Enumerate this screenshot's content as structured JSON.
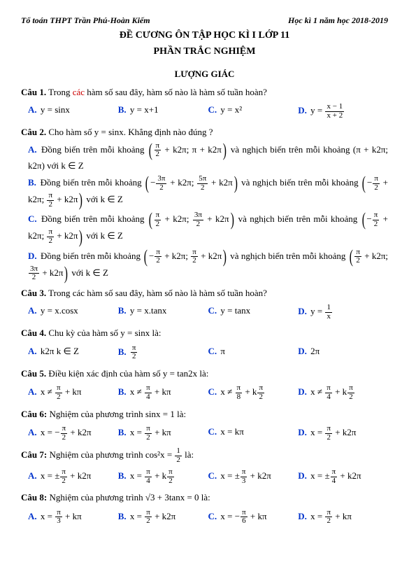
{
  "header": {
    "left": "Tổ toán THPT Trần Phú-Hoàn Kiếm",
    "right": "Học kì 1 năm học 2018-2019"
  },
  "title1": "ĐỀ CƯƠNG ÔN TẬP HỌC KÌ I LỚP 11",
  "title2": "PHẦN TRẮC NGHIỆM",
  "section1": "LƯỢNG GIÁC",
  "q1": {
    "label": "Câu 1.",
    "pre": "Trong ",
    "red": "các",
    "post": " hàm số sau đây, hàm số nào là hàm số tuần hoàn?",
    "a": "y = sinx",
    "b": "y = x+1",
    "c": "y = x²",
    "d_pre": "y = ",
    "d_num": "x − 1",
    "d_den": "x + 2"
  },
  "q2": {
    "label": "Câu 2.",
    "text": "Cho hàm số y = sinx. Khẳng định nào đúng ?",
    "a_pre": "Đồng biến trên mỗi khoảng ",
    "a_int1_a": "π",
    "a_int1_a_den": "2",
    "a_int1_post": " + k2π; π + k2π",
    "a_mid": " và nghịch biến trên mỗi khoảng ",
    "a_int2": "(π + k2π; k2π)  với k ∈ Z",
    "b_pre": "Đồng biến trên mỗi khoảng ",
    "b_i1_n1": "3π",
    "b_i1_d1": "2",
    "b_i1_n2": "5π",
    "b_i1_d2": "2",
    "b_mid": " và nghịch biến trên mỗi khoảng ",
    "b_i2_n1": "π",
    "b_i2_d1": "2",
    "b_i2_n2": "π",
    "b_i2_d2": "2",
    "b_end": " với k ∈ Z",
    "c_pre": "Đồng biến trên mỗi khoảng ",
    "c_i1_n1": "π",
    "c_i1_d1": "2",
    "c_i1_n2": "3π",
    "c_i1_d2": "2",
    "c_mid": " và nghịch biến trên mỗi khoảng ",
    "c_i2_n1": "π",
    "c_i2_d1": "2",
    "c_i2_n2": "π",
    "c_i2_d2": "2",
    "c_end": " với k ∈ Z",
    "d_pre": "Đồng biến trên mỗi khoảng ",
    "d_i1_n1": "π",
    "d_i1_d1": "2",
    "d_i1_n2": "π",
    "d_i1_d2": "2",
    "d_mid": " và nghịch biến trên mỗi khoảng ",
    "d_i2_n1": "π",
    "d_i2_d1": "2",
    "d_i2_n2": "3π",
    "d_i2_d2": "2",
    "d_end": " với k ∈ Z"
  },
  "q3": {
    "label": "Câu 3.",
    "text": "Trong các hàm số sau đây, hàm số nào là hàm số tuần hoàn?",
    "a": "y = x.cosx",
    "b": "y = x.tanx",
    "c": "y = tanx",
    "d_pre": "y = ",
    "d_num": "1",
    "d_den": "x"
  },
  "q4": {
    "label": "Câu 4.",
    "text": "Chu kỳ của hàm số  y = sinx là:",
    "a": "k2π  k ∈ Z",
    "b_num": "π",
    "b_den": "2",
    "c": "π",
    "d": "2π"
  },
  "q5": {
    "label": "Câu 5.",
    "text": "Điều kiện xác định của hàm số y = tan2x là:",
    "a_n": "π",
    "a_d": "2",
    "a_post": " + kπ",
    "b_n": "π",
    "b_d": "4",
    "b_post": " + kπ",
    "c_n1": "π",
    "c_d1": "8",
    "c_n2": "π",
    "c_d2": "2",
    "d_n1": "π",
    "d_d1": "4",
    "d_n2": "π",
    "d_d2": "2"
  },
  "q6": {
    "label": "Câu 6:",
    "text": "Nghiệm của phương trình   sinx = 1  là:",
    "a_n": "π",
    "a_d": "2",
    "a_post": " + k2π",
    "a_sign": "−",
    "b_n": "π",
    "b_d": "2",
    "b_post": " + kπ",
    "c": "x = kπ",
    "d_n": "π",
    "d_d": "2",
    "d_post": " + k2π"
  },
  "q7": {
    "label": "Câu 7:",
    "pre": "Nghiệm của phương trình   cos²x = ",
    "frac_n": "1",
    "frac_d": "2",
    "post": " là:",
    "a_n": "π",
    "a_d": "2",
    "a_post": " + k2π",
    "b_n": "π",
    "b_d": "4",
    "b_n2": "π",
    "b_d2": "2",
    "c_n": "π",
    "c_d": "3",
    "c_post": " + k2π",
    "d_n": "π",
    "d_d": "4",
    "d_post": " + k2π"
  },
  "q8": {
    "label": "Câu 8:",
    "text": "Nghiệm của phương trình  √3  + 3tanx = 0  là:",
    "a_n": "π",
    "a_d": "3",
    "a_post": " + kπ",
    "b_n": "π",
    "b_d": "2",
    "b_post": " + k2π",
    "c_n": "π",
    "c_d": "6",
    "c_post": " + kπ",
    "c_sign": "−",
    "d_n": "π",
    "d_d": "2",
    "d_post": " + kπ"
  }
}
